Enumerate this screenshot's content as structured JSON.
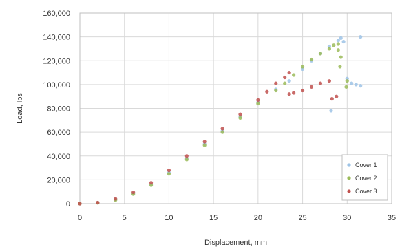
{
  "chart_data": {
    "type": "scatter",
    "title": "",
    "xlabel": "Displacement, mm",
    "ylabel": "Load, lbs",
    "xlim": [
      0,
      35
    ],
    "ylim": [
      0,
      160000
    ],
    "x_ticks": [
      "0",
      "5",
      "10",
      "15",
      "20",
      "25",
      "30",
      "35"
    ],
    "y_ticks": [
      "0",
      "20,000",
      "40,000",
      "60,000",
      "80,000",
      "100,000",
      "120,000",
      "140,000",
      "160,000"
    ],
    "grid": true,
    "legend_position": "bottom-right",
    "series": [
      {
        "name": "Cover 1",
        "color": "#9dc3e6",
        "points": [
          [
            0,
            0
          ],
          [
            2,
            800
          ],
          [
            4,
            3500
          ],
          [
            6,
            8500
          ],
          [
            8,
            16000
          ],
          [
            10,
            26000
          ],
          [
            12,
            38000
          ],
          [
            14,
            50000
          ],
          [
            16,
            61000
          ],
          [
            18,
            73000
          ],
          [
            20,
            85000
          ],
          [
            22,
            96000
          ],
          [
            23.5,
            103000
          ],
          [
            25,
            113000
          ],
          [
            26,
            120000
          ],
          [
            27,
            126000
          ],
          [
            28,
            132000
          ],
          [
            29,
            137000
          ],
          [
            29.3,
            139000
          ],
          [
            29.6,
            136000
          ],
          [
            30,
            105000
          ],
          [
            30.5,
            101000
          ],
          [
            31,
            100000
          ],
          [
            31.5,
            99000
          ],
          [
            28.2,
            78000
          ],
          [
            31.5,
            140000
          ]
        ]
      },
      {
        "name": "Cover 2",
        "color": "#9bbb59",
        "points": [
          [
            0,
            0
          ],
          [
            2,
            700
          ],
          [
            4,
            3000
          ],
          [
            6,
            8000
          ],
          [
            8,
            15500
          ],
          [
            10,
            25000
          ],
          [
            12,
            37000
          ],
          [
            14,
            49000
          ],
          [
            16,
            60000
          ],
          [
            18,
            72000
          ],
          [
            20,
            84000
          ],
          [
            22,
            95000
          ],
          [
            23,
            101000
          ],
          [
            24,
            108000
          ],
          [
            25,
            115000
          ],
          [
            26,
            121000
          ],
          [
            27,
            126000
          ],
          [
            28,
            130000
          ],
          [
            28.5,
            133000
          ],
          [
            29,
            134000
          ],
          [
            29,
            129000
          ],
          [
            29.3,
            123000
          ],
          [
            29.2,
            115000
          ],
          [
            30,
            103000
          ],
          [
            29.9,
            98000
          ]
        ]
      },
      {
        "name": "Cover 3",
        "color": "#c0504d",
        "points": [
          [
            0,
            0
          ],
          [
            2,
            900
          ],
          [
            4,
            4000
          ],
          [
            6,
            9500
          ],
          [
            8,
            17500
          ],
          [
            10,
            28000
          ],
          [
            12,
            40000
          ],
          [
            14,
            52000
          ],
          [
            16,
            63000
          ],
          [
            18,
            75000
          ],
          [
            20,
            87000
          ],
          [
            21,
            94000
          ],
          [
            22,
            101000
          ],
          [
            23,
            106000
          ],
          [
            23.5,
            110000
          ],
          [
            23.5,
            92000
          ],
          [
            24,
            93000
          ],
          [
            25,
            95000
          ],
          [
            26,
            98000
          ],
          [
            27,
            101000
          ],
          [
            28,
            103000
          ],
          [
            28.3,
            88000
          ],
          [
            28.8,
            90000
          ]
        ]
      }
    ]
  }
}
